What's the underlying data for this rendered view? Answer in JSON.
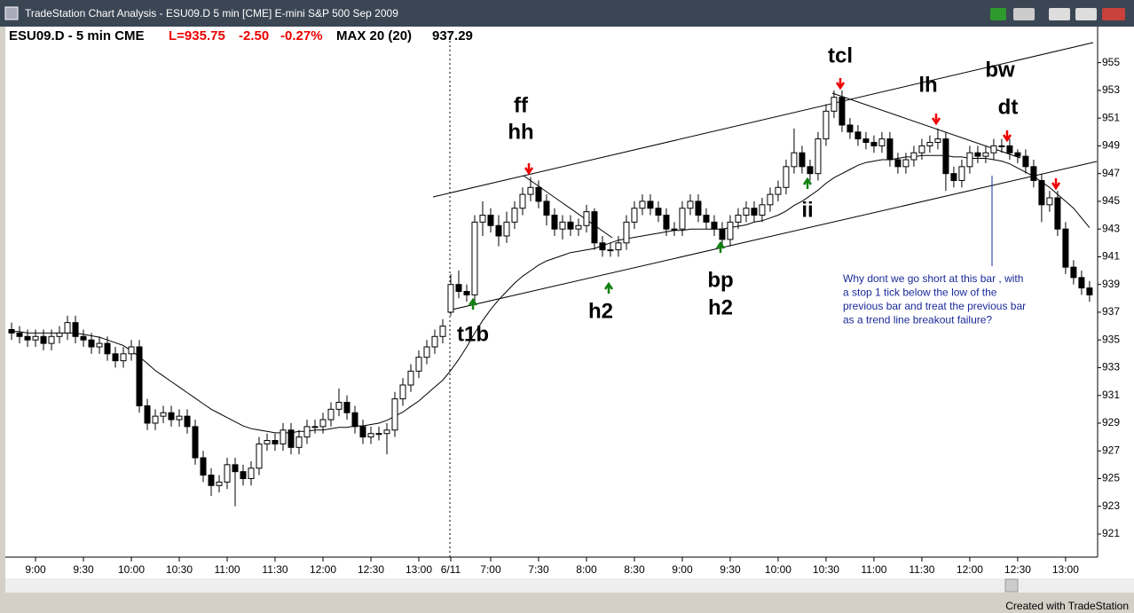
{
  "window_title": "TradeStation Chart Analysis - ESU09.D 5 min [CME] E-mini S&P 500 Sep 2009",
  "footer": "Created with TradeStation",
  "chart_data": {
    "type": "candlestick",
    "symbol_label": "ESU09.D - 5 min  CME",
    "last_label": "L=935.75",
    "change_label": "-2.50",
    "pct_label": "-0.27%",
    "indicator_label": "MAX 20 (20)",
    "indicator_value": 937.29,
    "up_color": "#ffffff",
    "down_color": "#000000",
    "ma_color": "#000000",
    "ylim": [
      919.4,
      957.6
    ],
    "yticks": [
      921,
      923,
      925,
      927,
      929,
      931,
      933,
      935,
      937,
      939,
      941,
      943,
      945,
      947,
      949,
      951,
      953,
      955
    ],
    "xlim": [
      -0.56,
      135.9
    ],
    "xticks": [
      {
        "value": 3,
        "label": "9:00"
      },
      {
        "value": 9,
        "label": "9:30"
      },
      {
        "value": 15,
        "label": "10:00"
      },
      {
        "value": 21,
        "label": "10:30"
      },
      {
        "value": 27,
        "label": "11:00"
      },
      {
        "value": 33,
        "label": "11:30"
      },
      {
        "value": 39,
        "label": "12:00"
      },
      {
        "value": 45,
        "label": "12:30"
      },
      {
        "value": 51,
        "label": "13:00"
      },
      {
        "value": 55,
        "label": "6/11"
      },
      {
        "value": 60,
        "label": "7:00"
      },
      {
        "value": 66,
        "label": "7:30"
      },
      {
        "value": 72,
        "label": "8:00"
      },
      {
        "value": 78,
        "label": "8:30"
      },
      {
        "value": 84,
        "label": "9:00"
      },
      {
        "value": 90,
        "label": "9:30"
      },
      {
        "value": 96,
        "label": "10:00"
      },
      {
        "value": 102,
        "label": "10:30"
      },
      {
        "value": 108,
        "label": "11:00"
      },
      {
        "value": 114,
        "label": "11:30"
      },
      {
        "value": 120,
        "label": "12:00"
      },
      {
        "value": 126,
        "label": "12:30"
      },
      {
        "value": 132,
        "label": "13:00"
      }
    ],
    "open": [
      935.75,
      935.5,
      935.25,
      935,
      935.25,
      934.75,
      935.25,
      935.5,
      936.25,
      935.25,
      935,
      934.5,
      934.75,
      934,
      933.5,
      934,
      934.5,
      930.25,
      929,
      929.5,
      929.75,
      929.25,
      929.5,
      928.75,
      926.5,
      925.25,
      924.5,
      924.75,
      926,
      925.5,
      925,
      925.75,
      927.5,
      927.75,
      927.5,
      928.5,
      927.25,
      928,
      928.75,
      928.75,
      929.25,
      930,
      930.5,
      929.75,
      928.75,
      928,
      928.25,
      928.25,
      928.5,
      930.75,
      931.75,
      932.75,
      933.75,
      934.5,
      935.25,
      937,
      939,
      938.5,
      938.25,
      943.5,
      944,
      943.25,
      942.5,
      943.5,
      944.5,
      945.5,
      946,
      945,
      944,
      943,
      943.5,
      943,
      943.25,
      944.25,
      942,
      941.5,
      941.5,
      942,
      943.5,
      944.5,
      945,
      944.5,
      944,
      943,
      943,
      944.5,
      945,
      944,
      943.5,
      943,
      942.25,
      943.5,
      944,
      944.5,
      944,
      944.75,
      945.5,
      946,
      947.5,
      948.5,
      947.5,
      947,
      949.5,
      951.5,
      952.5,
      950.5,
      950,
      949.5,
      949.25,
      949,
      949.5,
      948,
      947.5,
      948,
      948.5,
      949,
      949.25,
      949.5,
      947,
      946.5,
      947.5,
      948.5,
      948.25,
      948.5,
      949,
      949,
      948.5,
      948.25,
      947.5,
      946.5,
      944.75,
      945.25,
      943,
      940.25,
      939.5,
      938.75
    ],
    "high": [
      936.25,
      936,
      935.75,
      935.75,
      935.75,
      935.75,
      936,
      936.75,
      936.75,
      935.75,
      935.5,
      935.25,
      935.25,
      934.5,
      934.5,
      935,
      935,
      930.75,
      930,
      930.25,
      930.25,
      930,
      930,
      929.25,
      927,
      925.75,
      925.25,
      926.5,
      926.5,
      926,
      926.25,
      928,
      928.25,
      928.25,
      929,
      929,
      928.5,
      929.25,
      929.25,
      929.75,
      930.5,
      931.5,
      931,
      930.25,
      929.25,
      928.75,
      928.75,
      929,
      931.25,
      932.25,
      933.25,
      934.25,
      935,
      935.75,
      936.5,
      939.75,
      940,
      939,
      944,
      945,
      944.5,
      944,
      944.25,
      945,
      946,
      946.75,
      946.5,
      945.5,
      944.5,
      944,
      944,
      943.75,
      944.75,
      944.5,
      942.5,
      942,
      942.5,
      944,
      945,
      945.5,
      945.5,
      945,
      944.5,
      943.5,
      945,
      945.5,
      945.5,
      944.5,
      944,
      943.5,
      944,
      944.5,
      945,
      945,
      945.25,
      946,
      946.5,
      948,
      950.25,
      949,
      948,
      950,
      952,
      953,
      953,
      951,
      950.5,
      950,
      949.75,
      950,
      950,
      948.5,
      948.5,
      949,
      949.5,
      949.75,
      950.25,
      950,
      947.5,
      948,
      949,
      949,
      949,
      949.5,
      949.5,
      949.5,
      948.75,
      948.75,
      948,
      947,
      945.75,
      945.75,
      943.5,
      940.75,
      940,
      939.25
    ],
    "low": [
      935,
      934.75,
      934.5,
      934.5,
      934.25,
      934.25,
      934.75,
      935,
      934.75,
      934.5,
      934,
      934,
      933.5,
      933,
      933,
      933.5,
      929.75,
      928.5,
      928.5,
      929,
      928.75,
      928.75,
      928.25,
      926,
      924.75,
      923.75,
      924,
      924.25,
      923,
      924.5,
      924.5,
      925.25,
      927,
      927,
      927,
      926.75,
      926.75,
      927.5,
      928.25,
      928.25,
      928.75,
      929.5,
      929.25,
      928.25,
      927.5,
      927.5,
      927.75,
      926.75,
      928,
      930.25,
      931.25,
      932.25,
      933.25,
      934,
      934.75,
      936.75,
      938,
      937.75,
      937.75,
      942.5,
      942.75,
      941.75,
      942,
      943,
      944,
      945,
      944.5,
      943.25,
      942.5,
      942.25,
      942.5,
      942.5,
      942.75,
      941.5,
      941,
      941,
      941,
      941.5,
      943,
      944,
      944,
      943.5,
      942.5,
      942.5,
      942.5,
      944,
      943.5,
      943,
      942.5,
      941.75,
      941.75,
      943,
      943.5,
      943.5,
      943.5,
      944.25,
      945,
      945.5,
      947,
      947,
      946.5,
      946.5,
      949,
      951,
      950,
      949.5,
      949,
      948.75,
      948.5,
      948.5,
      947.5,
      947,
      947,
      947.5,
      948,
      948.5,
      948.75,
      945.75,
      946,
      946,
      947,
      947.75,
      947.75,
      948,
      948.5,
      948,
      947.75,
      947,
      946,
      943.5,
      944.25,
      942.5,
      939.75,
      939,
      938.25,
      937.75
    ],
    "close": [
      935.5,
      935.25,
      935,
      935.25,
      934.75,
      935.25,
      935.5,
      936.25,
      935.25,
      935,
      934.5,
      934.75,
      934,
      933.5,
      934,
      934.5,
      930.25,
      929,
      929.5,
      929.75,
      929.25,
      929.5,
      928.75,
      926.5,
      925.25,
      924.5,
      924.75,
      926,
      925.5,
      925,
      925.75,
      927.5,
      927.75,
      927.5,
      928.5,
      927.25,
      928,
      928.75,
      928.75,
      929.25,
      930,
      930.5,
      929.75,
      928.75,
      928,
      928.25,
      928.25,
      928.5,
      930.75,
      931.75,
      932.75,
      933.75,
      934.5,
      935.25,
      936,
      939,
      938.5,
      938.25,
      943.5,
      944,
      943.25,
      942.5,
      943.5,
      944.5,
      945.5,
      946,
      945,
      944,
      943,
      943.5,
      943,
      943.25,
      944.25,
      942,
      941.5,
      941.5,
      942,
      943.5,
      944.5,
      945,
      944.5,
      944,
      943,
      943,
      944.5,
      945,
      944,
      943.5,
      943,
      942.25,
      943.5,
      944,
      944.5,
      944,
      944.75,
      945.5,
      946,
      947.5,
      948.5,
      947.5,
      947,
      949.5,
      951.5,
      952.5,
      950.5,
      950,
      949.5,
      949.25,
      949,
      949.5,
      948,
      947.5,
      948,
      948.5,
      949,
      949.25,
      949.5,
      947,
      946.5,
      947.5,
      948.5,
      948.25,
      948.5,
      949,
      949,
      948.5,
      948.25,
      947.5,
      946.5,
      944.75,
      945.25,
      943,
      940.25,
      939.5,
      938.75,
      938.25
    ],
    "ma": [
      935.6,
      935.6,
      935.5,
      935.5,
      935.5,
      935.5,
      935.5,
      935.5,
      935.5,
      935.4,
      935.3,
      935.2,
      935,
      934.8,
      934.6,
      934.2,
      933.8,
      933.3,
      932.8,
      932.4,
      932,
      931.6,
      931.2,
      930.8,
      930.4,
      930,
      929.7,
      929.4,
      929.1,
      928.8,
      928.6,
      928.5,
      928.4,
      928.3,
      928.3,
      928.3,
      928.4,
      928.4,
      928.5,
      928.5,
      928.6,
      928.7,
      928.7,
      928.8,
      928.8,
      928.9,
      929,
      929.2,
      929.5,
      929.8,
      930.2,
      930.6,
      931.1,
      931.6,
      932.1,
      932.8,
      933.6,
      934.5,
      935.5,
      936.4,
      937.2,
      937.9,
      938.5,
      939.1,
      939.6,
      940,
      940.4,
      940.7,
      940.9,
      941.1,
      941.3,
      941.4,
      941.5,
      941.6,
      941.8,
      942,
      942.2,
      942.3,
      942.4,
      942.5,
      942.6,
      942.7,
      942.8,
      942.9,
      942.9,
      943,
      943,
      943,
      943,
      943,
      943.1,
      943.2,
      943.3,
      943.5,
      943.6,
      943.8,
      944,
      944.3,
      944.7,
      945,
      945.4,
      945.8,
      946.3,
      946.7,
      947,
      947.3,
      947.6,
      947.8,
      947.9,
      948,
      948,
      948.1,
      948.2,
      948.2,
      948.3,
      948.3,
      948.3,
      948.3,
      948.2,
      948.2,
      948.1,
      948.1,
      948.1,
      948,
      947.9,
      947.7,
      947.4,
      947.1,
      946.8,
      946.4,
      946,
      945.5,
      945,
      944.5,
      943.8,
      943.1
    ],
    "annotations": [
      "ff",
      "hh",
      "tcl",
      "lh",
      "bw",
      "dt",
      "t1b",
      "h2",
      "bp",
      "h2",
      "ii"
    ],
    "note": [
      "Why dont we go short at this bar , with",
      "a stop 1 tick below the low of the",
      "previous bar and treat the previous bar",
      "as a trend line breakout failure?"
    ]
  }
}
